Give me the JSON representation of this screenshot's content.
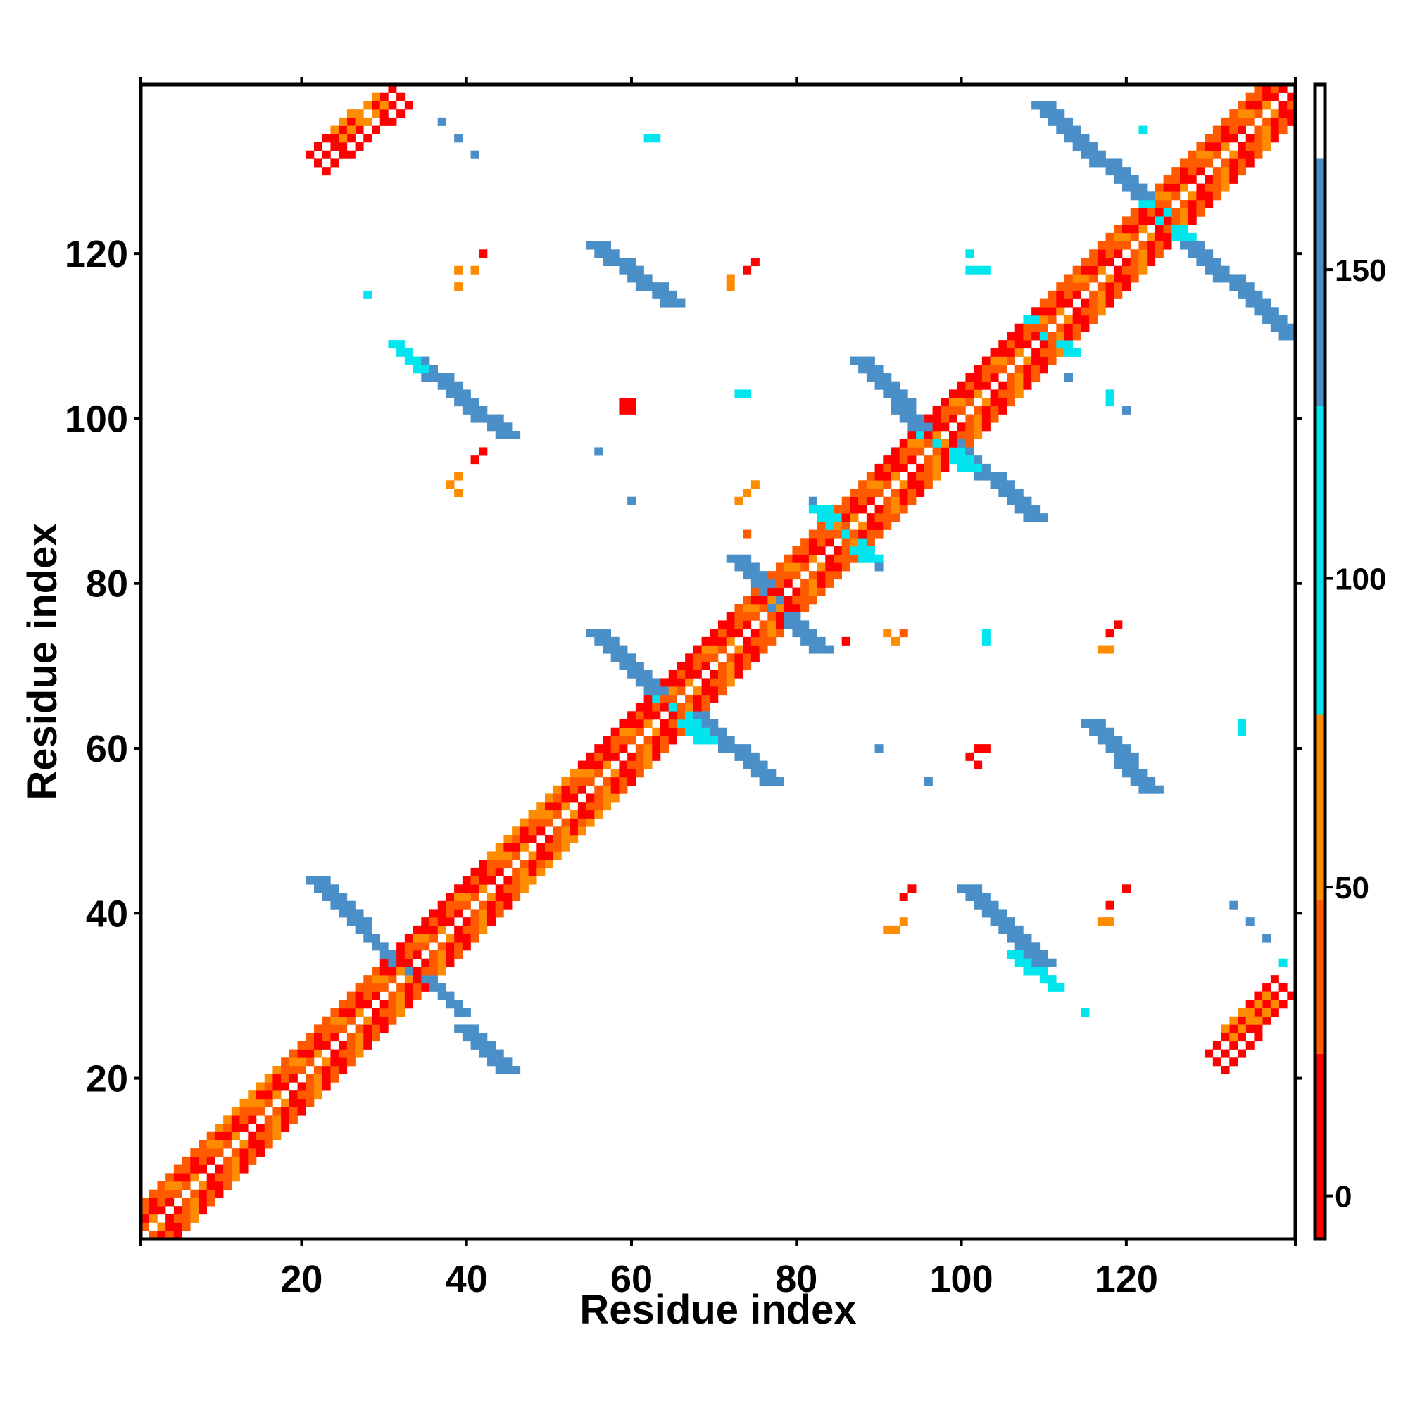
{
  "chart_data": {
    "type": "heatmap",
    "xlabel": "Residue index",
    "ylabel": "Residue index",
    "x_range": [
      1,
      140
    ],
    "y_range": [
      1,
      140
    ],
    "x_ticks": [
      20,
      40,
      60,
      80,
      100,
      120
    ],
    "y_ticks": [
      20,
      40,
      60,
      80,
      100,
      120
    ],
    "colorbar": {
      "range": [
        -7,
        180
      ],
      "ticks": [
        0,
        50,
        100,
        150
      ],
      "bands": [
        {
          "from": -7,
          "to": 23,
          "color": "#ff0000"
        },
        {
          "from": 23,
          "to": 48,
          "color": "#ff5a00"
        },
        {
          "from": 48,
          "to": 78,
          "color": "#ff8c00"
        },
        {
          "from": 78,
          "to": 128,
          "color": "#00e5ee"
        },
        {
          "from": 128,
          "to": 168,
          "color": "#4a8fc8"
        },
        {
          "from": 168,
          "to": 180,
          "color": "#ffffff"
        }
      ]
    },
    "cell_colors": {
      "red": "#ff0000",
      "darkorange": "#ff5a00",
      "orange": "#ff8c00",
      "cyan": "#00e5ee",
      "lightblue": "#33b8dd",
      "steelblue": "#4a8fc8"
    },
    "diagonal": {
      "from": 1,
      "to": 140,
      "band_width": 4
    },
    "segments": [
      {
        "x1": 1,
        "y1": 1,
        "x2": 12,
        "y2": 12,
        "width": 4,
        "color": "darkorange"
      },
      {
        "x1": 12,
        "y1": 12,
        "x2": 20,
        "y2": 20,
        "width": 4,
        "color": "orange"
      },
      {
        "x1": 20,
        "y1": 20,
        "x2": 32,
        "y2": 32,
        "width": 4,
        "color": "darkorange"
      },
      {
        "x1": 32,
        "y1": 32,
        "x2": 45,
        "y2": 45,
        "width": 4,
        "color": "red"
      },
      {
        "x1": 45,
        "y1": 45,
        "x2": 56,
        "y2": 56,
        "width": 5,
        "color": "orange"
      },
      {
        "x1": 56,
        "y1": 56,
        "x2": 75,
        "y2": 75,
        "width": 4,
        "color": "red"
      },
      {
        "x1": 75,
        "y1": 75,
        "x2": 92,
        "y2": 92,
        "width": 5,
        "color": "darkorange"
      },
      {
        "x1": 92,
        "y1": 92,
        "x2": 112,
        "y2": 112,
        "width": 4,
        "color": "red"
      },
      {
        "x1": 112,
        "y1": 112,
        "x2": 140,
        "y2": 140,
        "width": 4,
        "color": "darkorange"
      },
      {
        "x1": 21,
        "y1": 44,
        "x2": 26,
        "y2": 39,
        "width": 3,
        "color": "steelblue"
      },
      {
        "x1": 27,
        "y1": 38,
        "x2": 32,
        "y2": 33,
        "width": 2,
        "color": "steelblue"
      },
      {
        "x1": 39,
        "y1": 26,
        "x2": 44,
        "y2": 21,
        "width": 3,
        "color": "steelblue"
      },
      {
        "x1": 34,
        "y1": 33,
        "x2": 39,
        "y2": 28,
        "width": 2,
        "color": "steelblue"
      },
      {
        "x1": 33,
        "y1": 107,
        "x2": 44,
        "y2": 98,
        "width": 3,
        "color": "steelblue"
      },
      {
        "x1": 31,
        "y1": 109,
        "x2": 34,
        "y2": 106,
        "width": 2,
        "color": "cyan"
      },
      {
        "x1": 55,
        "y1": 121,
        "x2": 64,
        "y2": 114,
        "width": 3,
        "color": "steelblue"
      },
      {
        "x1": 55,
        "y1": 74,
        "x2": 64,
        "y2": 65,
        "width": 3,
        "color": "steelblue"
      },
      {
        "x1": 67,
        "y1": 64,
        "x2": 76,
        "y2": 56,
        "width": 3,
        "color": "steelblue"
      },
      {
        "x1": 63,
        "y1": 66,
        "x2": 68,
        "y2": 61,
        "width": 3,
        "color": "cyan"
      },
      {
        "x1": 72,
        "y1": 83,
        "x2": 82,
        "y2": 72,
        "width": 3,
        "color": "steelblue"
      },
      {
        "x1": 82,
        "y1": 89,
        "x2": 88,
        "y2": 83,
        "width": 3,
        "color": "cyan"
      },
      {
        "x1": 87,
        "y1": 107,
        "x2": 97,
        "y2": 96,
        "width": 3,
        "color": "steelblue"
      },
      {
        "x1": 98,
        "y1": 97,
        "x2": 108,
        "y2": 88,
        "width": 3,
        "color": "steelblue"
      },
      {
        "x1": 95,
        "y1": 98,
        "x2": 100,
        "y2": 94,
        "width": 3,
        "color": "cyan"
      },
      {
        "x1": 100,
        "y1": 43,
        "x2": 109,
        "y2": 34,
        "width": 3,
        "color": "steelblue"
      },
      {
        "x1": 106,
        "y1": 35,
        "x2": 111,
        "y2": 31,
        "width": 2,
        "color": "cyan"
      },
      {
        "x1": 115,
        "y1": 63,
        "x2": 122,
        "y2": 55,
        "width": 3,
        "color": "steelblue"
      },
      {
        "x1": 109,
        "y1": 138,
        "x2": 124,
        "y2": 124,
        "width": 3,
        "color": "steelblue"
      },
      {
        "x1": 125,
        "y1": 123,
        "x2": 139,
        "y2": 110,
        "width": 3,
        "color": "steelblue"
      },
      {
        "x1": 122,
        "y1": 126,
        "x2": 126,
        "y2": 122,
        "width": 3,
        "color": "cyan"
      },
      {
        "x1": 108,
        "y1": 112,
        "x2": 113,
        "y2": 108,
        "width": 2,
        "color": "cyan"
      },
      {
        "x1": 22,
        "y1": 131,
        "x2": 32,
        "y2": 139,
        "width": 3,
        "color": "red"
      },
      {
        "x1": 25,
        "y1": 134,
        "x2": 30,
        "y2": 138,
        "width": 2,
        "color": "orange"
      },
      {
        "x1": 131,
        "y1": 22,
        "x2": 139,
        "y2": 31,
        "width": 3,
        "color": "red"
      },
      {
        "x1": 133,
        "y1": 25,
        "x2": 138,
        "y2": 29,
        "width": 2,
        "color": "orange"
      }
    ],
    "points": [
      {
        "x": 37,
        "y": 136,
        "color": "steelblue"
      },
      {
        "x": 39,
        "y": 134,
        "color": "steelblue"
      },
      {
        "x": 41,
        "y": 132,
        "color": "steelblue"
      },
      {
        "x": 62,
        "y": 134,
        "color": "cyan"
      },
      {
        "x": 63,
        "y": 134,
        "color": "cyan"
      },
      {
        "x": 42,
        "y": 120,
        "color": "red"
      },
      {
        "x": 39,
        "y": 118,
        "color": "orange"
      },
      {
        "x": 41,
        "y": 118,
        "color": "orange"
      },
      {
        "x": 39,
        "y": 116,
        "color": "orange"
      },
      {
        "x": 28,
        "y": 115,
        "color": "cyan"
      },
      {
        "x": 75,
        "y": 119,
        "color": "red"
      },
      {
        "x": 74,
        "y": 118,
        "color": "red"
      },
      {
        "x": 72,
        "y": 117,
        "color": "orange"
      },
      {
        "x": 72,
        "y": 116,
        "color": "orange"
      },
      {
        "x": 101,
        "y": 120,
        "color": "cyan"
      },
      {
        "x": 101,
        "y": 118,
        "color": "cyan"
      },
      {
        "x": 102,
        "y": 118,
        "color": "cyan"
      },
      {
        "x": 103,
        "y": 118,
        "color": "cyan"
      },
      {
        "x": 59,
        "y": 102,
        "color": "red"
      },
      {
        "x": 60,
        "y": 102,
        "color": "red"
      },
      {
        "x": 59,
        "y": 101,
        "color": "red"
      },
      {
        "x": 60,
        "y": 101,
        "color": "red"
      },
      {
        "x": 73,
        "y": 103,
        "color": "cyan"
      },
      {
        "x": 74,
        "y": 103,
        "color": "cyan"
      },
      {
        "x": 118,
        "y": 103,
        "color": "cyan"
      },
      {
        "x": 118,
        "y": 102,
        "color": "cyan"
      },
      {
        "x": 120,
        "y": 101,
        "color": "steelblue"
      },
      {
        "x": 113,
        "y": 105,
        "color": "steelblue"
      },
      {
        "x": 42,
        "y": 96,
        "color": "red"
      },
      {
        "x": 41,
        "y": 95,
        "color": "red"
      },
      {
        "x": 39,
        "y": 93,
        "color": "orange"
      },
      {
        "x": 38,
        "y": 92,
        "color": "orange"
      },
      {
        "x": 39,
        "y": 91,
        "color": "orange"
      },
      {
        "x": 56,
        "y": 96,
        "color": "steelblue"
      },
      {
        "x": 60,
        "y": 90,
        "color": "steelblue"
      },
      {
        "x": 75,
        "y": 92,
        "color": "orange"
      },
      {
        "x": 74,
        "y": 91,
        "color": "orange"
      },
      {
        "x": 73,
        "y": 90,
        "color": "orange"
      },
      {
        "x": 74,
        "y": 86,
        "color": "darkorange"
      },
      {
        "x": 82,
        "y": 90,
        "color": "steelblue"
      },
      {
        "x": 90,
        "y": 82,
        "color": "steelblue"
      },
      {
        "x": 91,
        "y": 74,
        "color": "orange"
      },
      {
        "x": 92,
        "y": 73,
        "color": "orange"
      },
      {
        "x": 93,
        "y": 74,
        "color": "darkorange"
      },
      {
        "x": 86,
        "y": 73,
        "color": "red"
      },
      {
        "x": 103,
        "y": 74,
        "color": "cyan"
      },
      {
        "x": 103,
        "y": 73,
        "color": "cyan"
      },
      {
        "x": 119,
        "y": 75,
        "color": "red"
      },
      {
        "x": 118,
        "y": 74,
        "color": "red"
      },
      {
        "x": 117,
        "y": 72,
        "color": "orange"
      },
      {
        "x": 118,
        "y": 72,
        "color": "orange"
      },
      {
        "x": 90,
        "y": 60,
        "color": "steelblue"
      },
      {
        "x": 96,
        "y": 56,
        "color": "steelblue"
      },
      {
        "x": 102,
        "y": 60,
        "color": "red"
      },
      {
        "x": 103,
        "y": 60,
        "color": "red"
      },
      {
        "x": 101,
        "y": 59,
        "color": "red"
      },
      {
        "x": 102,
        "y": 58,
        "color": "red"
      },
      {
        "x": 134,
        "y": 63,
        "color": "cyan"
      },
      {
        "x": 134,
        "y": 62,
        "color": "cyan"
      },
      {
        "x": 94,
        "y": 43,
        "color": "red"
      },
      {
        "x": 93,
        "y": 42,
        "color": "red"
      },
      {
        "x": 93,
        "y": 39,
        "color": "orange"
      },
      {
        "x": 92,
        "y": 38,
        "color": "orange"
      },
      {
        "x": 91,
        "y": 38,
        "color": "orange"
      },
      {
        "x": 120,
        "y": 43,
        "color": "red"
      },
      {
        "x": 118,
        "y": 41,
        "color": "red"
      },
      {
        "x": 117,
        "y": 39,
        "color": "orange"
      },
      {
        "x": 118,
        "y": 39,
        "color": "orange"
      },
      {
        "x": 133,
        "y": 41,
        "color": "steelblue"
      },
      {
        "x": 135,
        "y": 39,
        "color": "steelblue"
      },
      {
        "x": 137,
        "y": 37,
        "color": "steelblue"
      },
      {
        "x": 115,
        "y": 28,
        "color": "cyan"
      },
      {
        "x": 139,
        "y": 34,
        "color": "cyan"
      },
      {
        "x": 122,
        "y": 135,
        "color": "cyan"
      }
    ]
  }
}
